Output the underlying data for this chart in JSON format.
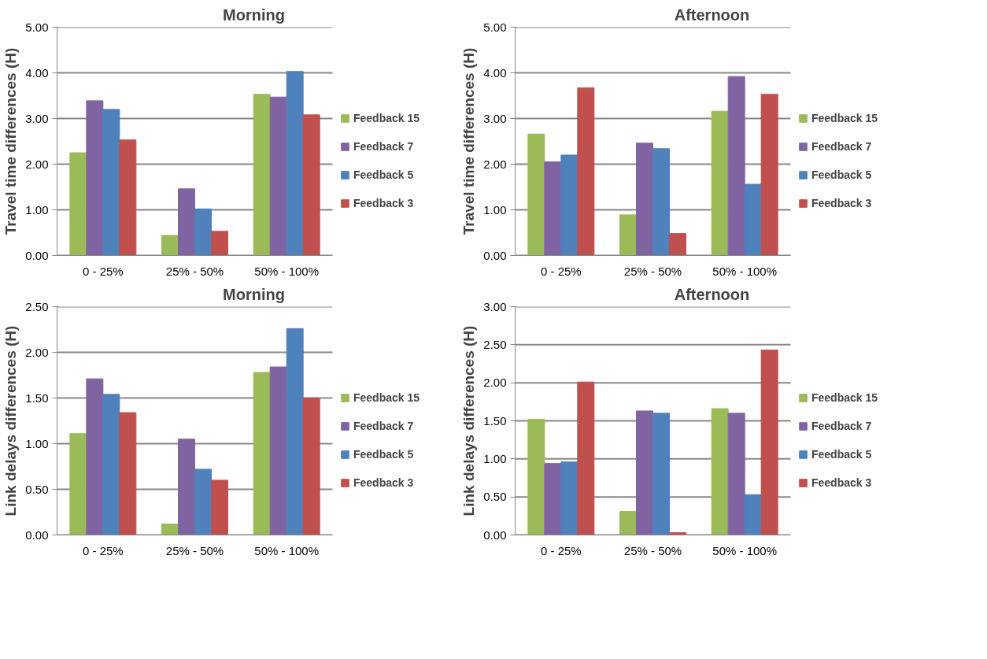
{
  "chart_data": [
    {
      "type": "bar",
      "title": "Morning",
      "ylabel": "Travel time differences (H)",
      "categories": [
        "0 - 25%",
        "25% - 50%",
        "50% - 100%"
      ],
      "series": [
        {
          "name": "Feedback 15",
          "color": "#9bbb59",
          "values": [
            2.25,
            0.44,
            3.53
          ]
        },
        {
          "name": "Feedback 7",
          "color": "#8064a2",
          "values": [
            3.39,
            1.46,
            3.47
          ]
        },
        {
          "name": "Feedback 5",
          "color": "#4f81bd",
          "values": [
            3.2,
            1.02,
            4.03
          ]
        },
        {
          "name": "Feedback 3",
          "color": "#c0504d",
          "values": [
            2.53,
            0.53,
            3.08
          ]
        }
      ],
      "ylim": [
        0,
        5
      ],
      "yticks": [
        {
          "value": 0,
          "label": "0.00"
        },
        {
          "value": 1,
          "label": "1.00"
        },
        {
          "value": 2,
          "label": "2.00"
        },
        {
          "value": 3,
          "label": "3.00"
        },
        {
          "value": 4,
          "label": "4.00"
        },
        {
          "value": 5,
          "label": "5.00"
        }
      ],
      "grid": "y",
      "legend": "right"
    },
    {
      "type": "bar",
      "title": "Afternoon",
      "ylabel": "Travel time differences (H)",
      "categories": [
        "0 - 25%",
        "25% - 50%",
        "50% - 100%"
      ],
      "series": [
        {
          "name": "Feedback 15",
          "color": "#9bbb59",
          "values": [
            2.66,
            0.89,
            3.16
          ]
        },
        {
          "name": "Feedback 7",
          "color": "#8064a2",
          "values": [
            2.05,
            2.46,
            3.92
          ]
        },
        {
          "name": "Feedback 5",
          "color": "#4f81bd",
          "values": [
            2.2,
            2.34,
            1.56
          ]
        },
        {
          "name": "Feedback 3",
          "color": "#c0504d",
          "values": [
            3.67,
            0.48,
            3.53
          ]
        }
      ],
      "ylim": [
        0,
        5
      ],
      "yticks": [
        {
          "value": 0,
          "label": "0.00"
        },
        {
          "value": 1,
          "label": "1.00"
        },
        {
          "value": 2,
          "label": "2.00"
        },
        {
          "value": 3,
          "label": "3.00"
        },
        {
          "value": 4,
          "label": "4.00"
        },
        {
          "value": 5,
          "label": "5.00"
        }
      ],
      "grid": "y",
      "legend": "right"
    },
    {
      "type": "bar",
      "title": "Morning",
      "ylabel": "Link delays differences (H)",
      "categories": [
        "0 - 25%",
        "25% - 50%",
        "50% - 100%"
      ],
      "series": [
        {
          "name": "Feedback 15",
          "color": "#9bbb59",
          "values": [
            1.11,
            0.12,
            1.78
          ]
        },
        {
          "name": "Feedback 7",
          "color": "#8064a2",
          "values": [
            1.71,
            1.05,
            1.84
          ]
        },
        {
          "name": "Feedback 5",
          "color": "#4f81bd",
          "values": [
            1.54,
            0.72,
            2.26
          ]
        },
        {
          "name": "Feedback 3",
          "color": "#c0504d",
          "values": [
            1.34,
            0.6,
            1.5
          ]
        }
      ],
      "ylim": [
        0,
        2.5
      ],
      "yticks": [
        {
          "value": 0,
          "label": "0.00"
        },
        {
          "value": 0.5,
          "label": "0.50"
        },
        {
          "value": 1,
          "label": "1.00"
        },
        {
          "value": 1.5,
          "label": "1.50"
        },
        {
          "value": 2,
          "label": "2.00"
        },
        {
          "value": 2.5,
          "label": "2.50"
        }
      ],
      "grid": "y",
      "legend": "right"
    },
    {
      "type": "bar",
      "title": "Afternoon",
      "ylabel": "Link delays differences (H)",
      "categories": [
        "0 - 25%",
        "25% - 50%",
        "50% - 100%"
      ],
      "series": [
        {
          "name": "Feedback 15",
          "color": "#9bbb59",
          "values": [
            1.52,
            0.31,
            1.66
          ]
        },
        {
          "name": "Feedback 7",
          "color": "#8064a2",
          "values": [
            0.94,
            1.63,
            1.6
          ]
        },
        {
          "name": "Feedback 5",
          "color": "#4f81bd",
          "values": [
            0.96,
            1.6,
            0.53
          ]
        },
        {
          "name": "Feedback 3",
          "color": "#c0504d",
          "values": [
            2.01,
            0.03,
            2.43
          ]
        }
      ],
      "ylim": [
        0,
        3
      ],
      "yticks": [
        {
          "value": 0,
          "label": "0.00"
        },
        {
          "value": 0.5,
          "label": "0.50"
        },
        {
          "value": 1,
          "label": "1.00"
        },
        {
          "value": 1.5,
          "label": "1.50"
        },
        {
          "value": 2,
          "label": "2.00"
        },
        {
          "value": 2.5,
          "label": "2.50"
        },
        {
          "value": 3,
          "label": "3.00"
        }
      ],
      "grid": "y",
      "legend": "right"
    }
  ]
}
